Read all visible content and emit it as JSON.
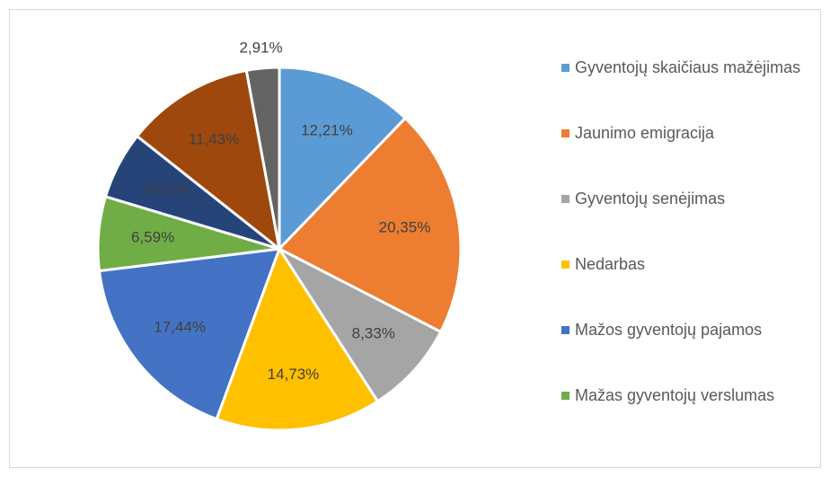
{
  "chart_data": {
    "type": "pie",
    "categories": [
      "Gyventojų skaičiaus mažėjimas",
      "Jaunimo emigracija",
      "Gyventojų senėjimas",
      "Nedarbas",
      "Mažos gyventojų pajamos",
      "Mažas gyventojų verslumas",
      null,
      null,
      null
    ],
    "values": [
      12.21,
      20.35,
      8.33,
      14.73,
      17.44,
      6.59,
      6.01,
      11.43,
      2.91
    ],
    "value_labels": [
      "12,21%",
      "20,35%",
      "8,33%",
      "14,73%",
      "17,44%",
      "6,59%",
      "6,01%",
      "11,43%",
      "2,91%"
    ],
    "colors": [
      "#5b9bd5",
      "#ed7d31",
      "#a5a5a5",
      "#ffc000",
      "#4472c4",
      "#70ad47",
      "#264478",
      "#9e480e",
      "#636363"
    ],
    "legend": "right"
  }
}
